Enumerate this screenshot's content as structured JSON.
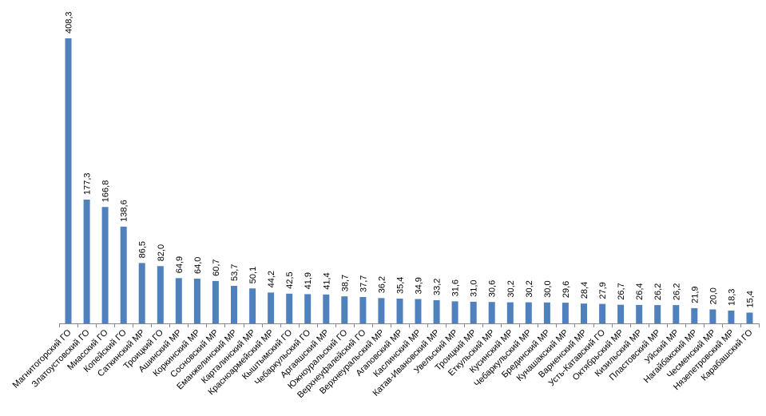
{
  "chart_data": {
    "type": "bar",
    "title": "",
    "xlabel": "",
    "ylabel": "",
    "ylim": [
      0,
      408.3
    ],
    "grid": false,
    "legend": "none",
    "bar_color": "#4f81bd",
    "categories": [
      "Магнитогорский ГО",
      "Златоустовский ГО",
      "Миасский ГО",
      "Копейский ГО",
      "Саткинский МР",
      "Троицкий  ГО",
      "Ашинский  МР",
      "Коркинский МР",
      "Сосновский МР",
      "Еманжелинский МР",
      "Карталинский МР",
      "Красноармейский МР",
      "Кыштымский ГО",
      "Чебаркульский ГО",
      "Аргаяшский МР",
      "Южноуральский  ГО",
      "Верхнеуфалейский  ГО",
      "Верхнеуральский МР",
      "Агаповский МР",
      "Каслинский МР",
      "Катав-Ивановский МР",
      "Увельский МР",
      "Троицкий МР",
      "Еткульский МР",
      "Кусинский МР",
      "Чебаркульский  МР",
      "Брединский  МР",
      "Кунашакский МР",
      "Варненский МР",
      "Усть-Катавский ГО",
      "Октябрьский МР",
      "Кизильский МР",
      "Пластовский МР",
      "Уйский МР",
      "Нагайбакский МР",
      "Чесменский  МР",
      "Нязепетровский  МР",
      "Карабашский ГО"
    ],
    "values": [
      408.3,
      177.3,
      166.8,
      138.6,
      86.5,
      82.0,
      64.9,
      64.0,
      60.7,
      53.7,
      50.1,
      44.2,
      42.5,
      41.9,
      41.4,
      38.7,
      37.7,
      36.2,
      35.4,
      34.9,
      33.2,
      31.6,
      31.0,
      30.6,
      30.2,
      30.2,
      30.0,
      29.6,
      28.4,
      27.9,
      26.7,
      26.4,
      26.2,
      26.2,
      21.9,
      20.0,
      18.3,
      15.4
    ],
    "value_labels": [
      "408,3",
      "177,3",
      "166,8",
      "138,6",
      "86,5",
      "82,0",
      "64,9",
      "64,0",
      "60,7",
      "53,7",
      "50,1",
      "44,2",
      "42,5",
      "41,9",
      "41,4",
      "38,7",
      "37,7",
      "36,2",
      "35,4",
      "34,9",
      "33,2",
      "31,6",
      "31,0",
      "30,6",
      "30,2",
      "30,2",
      "30,0",
      "29,6",
      "28,4",
      "27,9",
      "26,7",
      "26,4",
      "26,2",
      "26,2",
      "21,9",
      "20,0",
      "18,3",
      "15,4"
    ]
  }
}
